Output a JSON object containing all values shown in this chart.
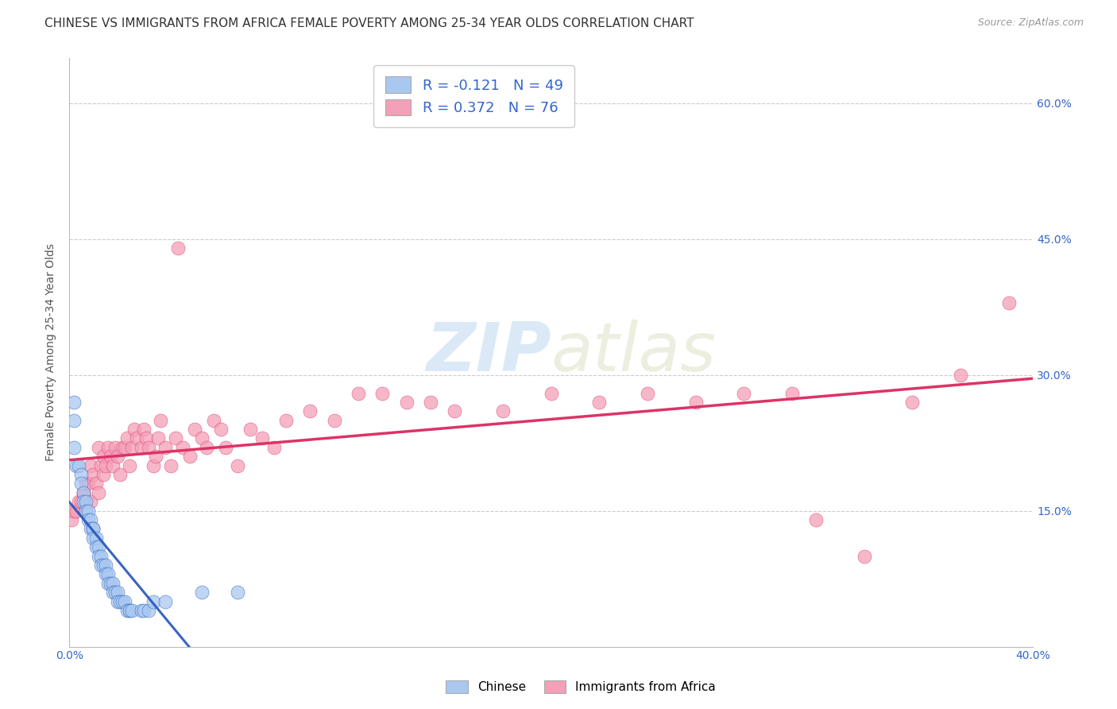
{
  "title": "CHINESE VS IMMIGRANTS FROM AFRICA FEMALE POVERTY AMONG 25-34 YEAR OLDS CORRELATION CHART",
  "source": "Source: ZipAtlas.com",
  "ylabel": "Female Poverty Among 25-34 Year Olds",
  "xlim": [
    0.0,
    0.4
  ],
  "ylim": [
    0.0,
    0.65
  ],
  "xticks": [
    0.0,
    0.05,
    0.1,
    0.15,
    0.2,
    0.25,
    0.3,
    0.35,
    0.4
  ],
  "ytick_positions": [
    0.0,
    0.15,
    0.3,
    0.45,
    0.6
  ],
  "right_ytick_positions": [
    0.15,
    0.3,
    0.45,
    0.6
  ],
  "right_ytick_labels": [
    "15.0%",
    "30.0%",
    "45.0%",
    "60.0%"
  ],
  "xtick_labels": [
    "0.0%",
    "",
    "",
    "",
    "",
    "",
    "",
    "",
    "40.0%"
  ],
  "legend_chinese_R": "-0.121",
  "legend_chinese_N": "49",
  "legend_africa_R": "0.372",
  "legend_africa_N": "76",
  "chinese_color": "#A8C8F0",
  "africa_color": "#F4A0B8",
  "chinese_line_color": "#2255BB",
  "africa_line_color": "#DD3366",
  "background_color": "#ffffff",
  "watermark_color": "#B8D4F0",
  "grid_color": "#cccccc",
  "title_fontsize": 11,
  "axis_label_fontsize": 10,
  "tick_fontsize": 10,
  "legend_fontsize": 13,
  "chinese_x": [
    0.002,
    0.002,
    0.002,
    0.003,
    0.004,
    0.005,
    0.005,
    0.006,
    0.006,
    0.007,
    0.007,
    0.008,
    0.008,
    0.009,
    0.009,
    0.01,
    0.01,
    0.01,
    0.011,
    0.011,
    0.012,
    0.012,
    0.013,
    0.013,
    0.014,
    0.015,
    0.015,
    0.016,
    0.016,
    0.017,
    0.018,
    0.018,
    0.019,
    0.02,
    0.02,
    0.021,
    0.022,
    0.023,
    0.024,
    0.025,
    0.025,
    0.026,
    0.03,
    0.031,
    0.033,
    0.035,
    0.04,
    0.055,
    0.07
  ],
  "chinese_y": [
    0.27,
    0.25,
    0.22,
    0.2,
    0.2,
    0.19,
    0.18,
    0.17,
    0.16,
    0.16,
    0.15,
    0.15,
    0.14,
    0.14,
    0.13,
    0.13,
    0.13,
    0.12,
    0.12,
    0.11,
    0.11,
    0.1,
    0.1,
    0.09,
    0.09,
    0.09,
    0.08,
    0.08,
    0.07,
    0.07,
    0.07,
    0.06,
    0.06,
    0.06,
    0.05,
    0.05,
    0.05,
    0.05,
    0.04,
    0.04,
    0.04,
    0.04,
    0.04,
    0.04,
    0.04,
    0.05,
    0.05,
    0.06,
    0.06
  ],
  "africa_x": [
    0.001,
    0.002,
    0.003,
    0.004,
    0.005,
    0.006,
    0.006,
    0.007,
    0.008,
    0.009,
    0.009,
    0.01,
    0.011,
    0.012,
    0.012,
    0.013,
    0.014,
    0.014,
    0.015,
    0.016,
    0.017,
    0.018,
    0.019,
    0.02,
    0.021,
    0.022,
    0.023,
    0.024,
    0.025,
    0.026,
    0.027,
    0.028,
    0.03,
    0.031,
    0.032,
    0.033,
    0.035,
    0.036,
    0.037,
    0.038,
    0.04,
    0.042,
    0.044,
    0.045,
    0.047,
    0.05,
    0.052,
    0.055,
    0.057,
    0.06,
    0.063,
    0.065,
    0.07,
    0.075,
    0.08,
    0.085,
    0.09,
    0.1,
    0.11,
    0.12,
    0.13,
    0.14,
    0.15,
    0.16,
    0.18,
    0.2,
    0.22,
    0.24,
    0.26,
    0.28,
    0.3,
    0.31,
    0.33,
    0.35,
    0.37,
    0.39
  ],
  "africa_y": [
    0.14,
    0.15,
    0.15,
    0.16,
    0.16,
    0.17,
    0.17,
    0.18,
    0.18,
    0.16,
    0.2,
    0.19,
    0.18,
    0.17,
    0.22,
    0.2,
    0.19,
    0.21,
    0.2,
    0.22,
    0.21,
    0.2,
    0.22,
    0.21,
    0.19,
    0.22,
    0.22,
    0.23,
    0.2,
    0.22,
    0.24,
    0.23,
    0.22,
    0.24,
    0.23,
    0.22,
    0.2,
    0.21,
    0.23,
    0.25,
    0.22,
    0.2,
    0.23,
    0.44,
    0.22,
    0.21,
    0.24,
    0.23,
    0.22,
    0.25,
    0.24,
    0.22,
    0.2,
    0.24,
    0.23,
    0.22,
    0.25,
    0.26,
    0.25,
    0.28,
    0.28,
    0.27,
    0.27,
    0.26,
    0.26,
    0.28,
    0.27,
    0.28,
    0.27,
    0.28,
    0.28,
    0.14,
    0.1,
    0.27,
    0.3,
    0.38
  ]
}
